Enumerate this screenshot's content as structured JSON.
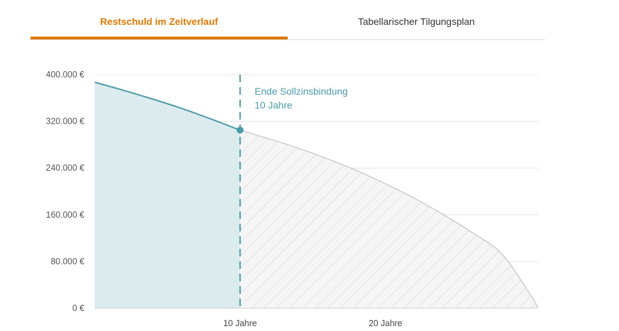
{
  "tabs": [
    {
      "label": "Restschuld im Zeitverlauf",
      "active": true
    },
    {
      "label": "Tabellarischer Tilgungsplan",
      "active": false
    }
  ],
  "chart_data": {
    "type": "area",
    "xlabel": "",
    "ylabel": "",
    "xlim": [
      0,
      30.5
    ],
    "ylim": [
      0,
      400000
    ],
    "y_ticks": [
      {
        "value": 0,
        "label": "0 €"
      },
      {
        "value": 80000,
        "label": "80.000 €"
      },
      {
        "value": 160000,
        "label": "160.000 €"
      },
      {
        "value": 240000,
        "label": "240.000 €"
      },
      {
        "value": 320000,
        "label": "320.000 €"
      },
      {
        "value": 400000,
        "label": "400.000 €"
      }
    ],
    "x_ticks": [
      {
        "value": 10,
        "label": "10 Jahre"
      },
      {
        "value": 20,
        "label": "20 Jahre"
      }
    ],
    "grid": true,
    "series": [
      {
        "x": [
          0,
          2,
          4,
          6,
          8,
          10
        ],
        "y": [
          387000,
          373000,
          358000,
          342000,
          324000,
          305000
        ],
        "color": "#4a9aa8",
        "fill": "#dcecee"
      },
      {
        "x": [
          10,
          12,
          14,
          16,
          18,
          20,
          22,
          24,
          26,
          28,
          30,
          30.5
        ],
        "y": [
          305000,
          290000,
          274000,
          256000,
          236000,
          213000,
          188000,
          160000,
          129000,
          93000,
          22000,
          0
        ],
        "color": "#cccccc",
        "fill": "hatch"
      }
    ],
    "marker": {
      "x": 10,
      "y": 305000,
      "color": "#4a9aa8"
    },
    "annotation": {
      "x": 10,
      "line1": "Ende Sollzinsbindung",
      "line2": "10 Jahre"
    }
  }
}
